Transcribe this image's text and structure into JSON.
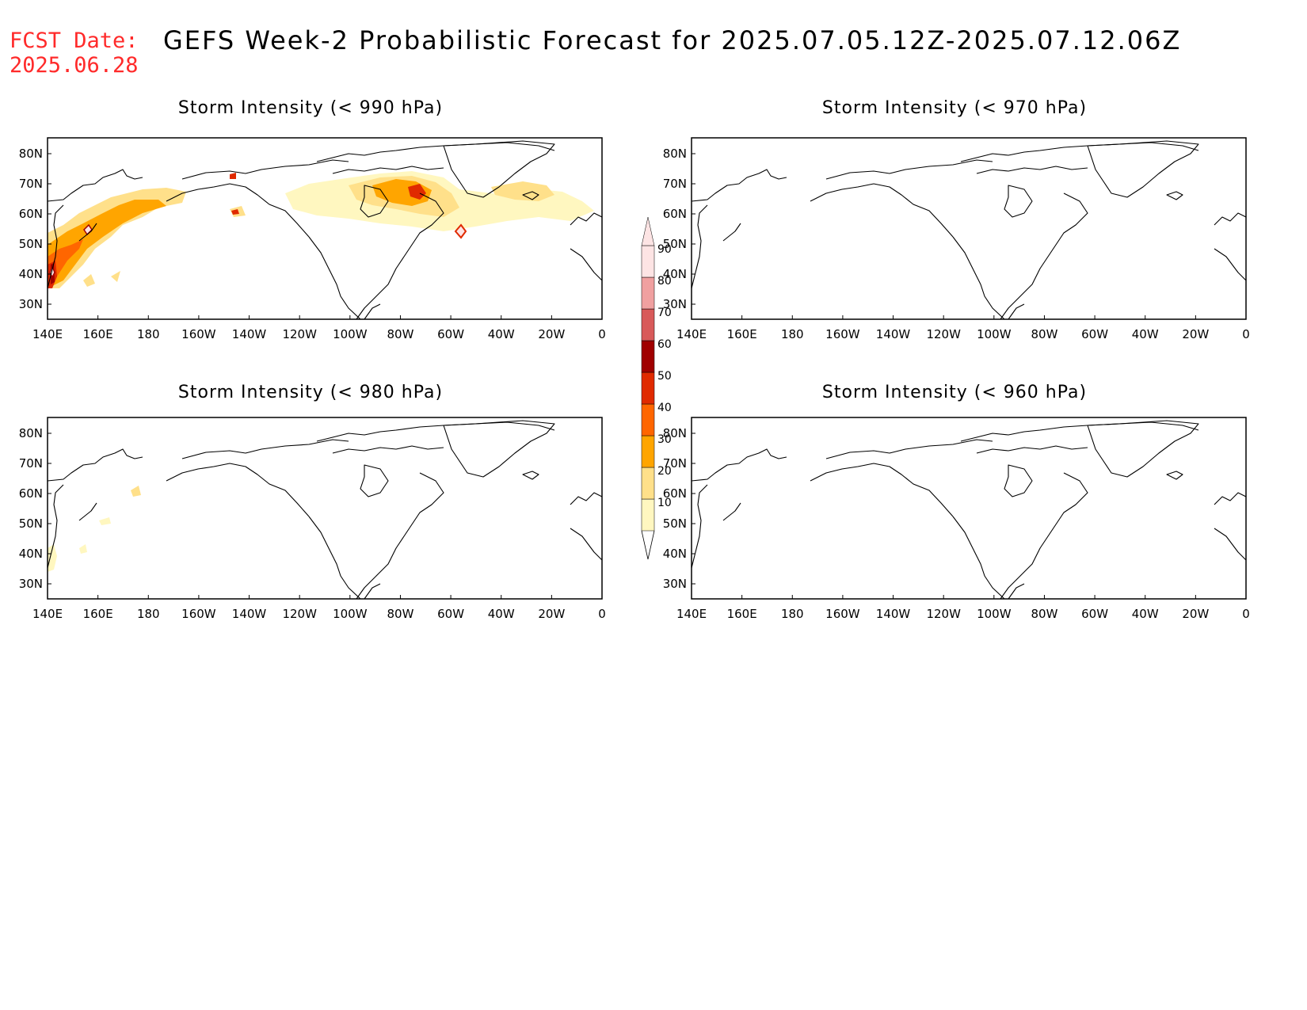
{
  "header": {
    "fcst_label": "FCST Date:",
    "fcst_date": "2025.06.28",
    "title": "GEFS Week-2 Probabilistic Forecast for 2025.07.05.12Z-2025.07.12.06Z"
  },
  "axes": {
    "lon_labels": [
      "140E",
      "160E",
      "180",
      "160W",
      "140W",
      "120W",
      "100W",
      "80W",
      "60W",
      "40W",
      "20W",
      "0"
    ],
    "lat_labels": [
      "80N",
      "70N",
      "60N",
      "50N",
      "40N",
      "30N"
    ]
  },
  "panels": [
    {
      "id": "p990",
      "title": "Storm Intensity (< 990 hPa)"
    },
    {
      "id": "p970",
      "title": "Storm Intensity (< 970 hPa)"
    },
    {
      "id": "p980",
      "title": "Storm Intensity (< 980 hPa)"
    },
    {
      "id": "p960",
      "title": "Storm Intensity (< 960 hPa)"
    }
  ],
  "colorbar": {
    "levels": [
      "10",
      "20",
      "30",
      "40",
      "50",
      "60",
      "70",
      "80",
      "90"
    ],
    "colors": [
      "#fff7c0",
      "#ffe08a",
      "#ffa500",
      "#ff6600",
      "#e02a00",
      "#a00000",
      "#d85a5a",
      "#f0a0a0",
      "#fde4e4"
    ]
  }
}
